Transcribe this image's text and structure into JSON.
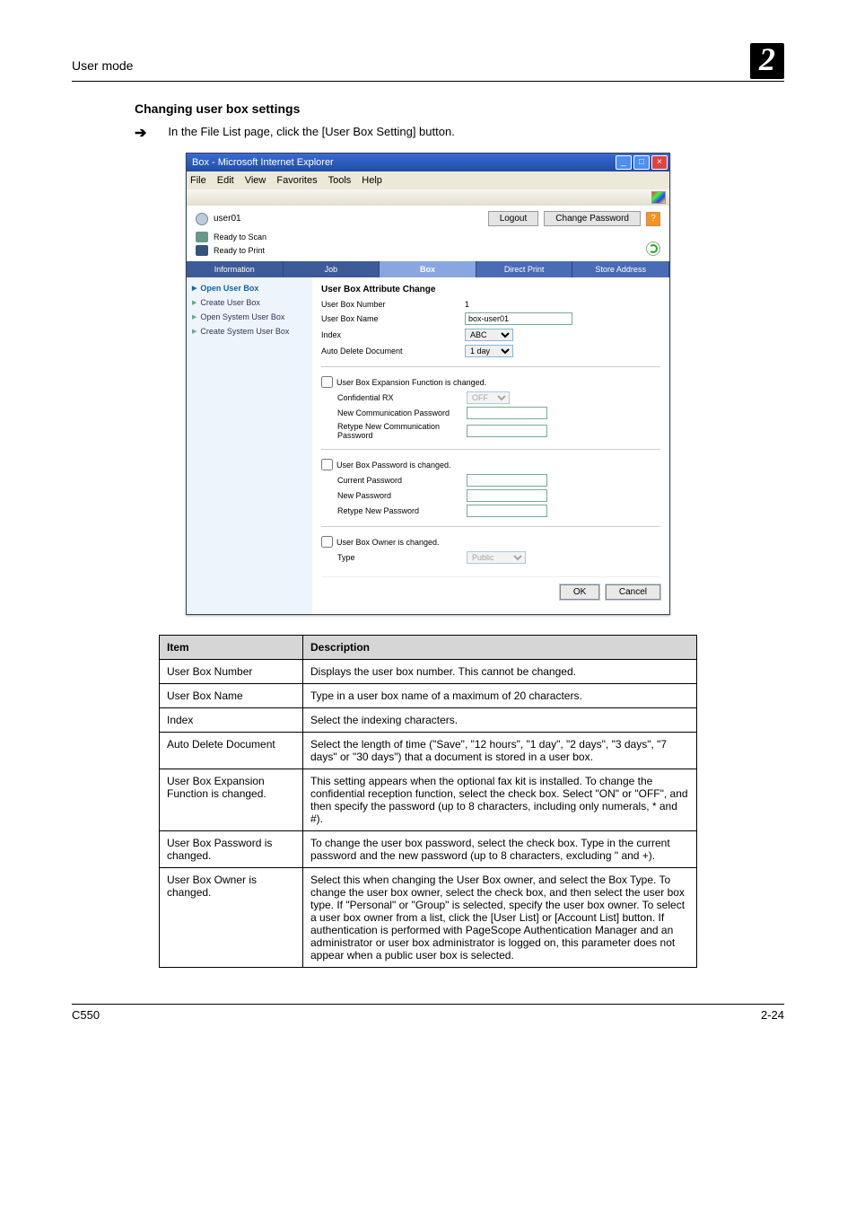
{
  "header": {
    "page_title": "User mode",
    "chapter": "2"
  },
  "section": {
    "title": "Changing user box settings",
    "instruction": "In the File List page, click the [User Box Setting] button."
  },
  "browser": {
    "title": "Box - Microsoft Internet Explorer",
    "menus": [
      "File",
      "Edit",
      "View",
      "Favorites",
      "Tools",
      "Help"
    ],
    "user": "user01",
    "logout": "Logout",
    "change_pw": "Change Password",
    "status_scan": "Ready to Scan",
    "status_print": "Ready to Print",
    "tabs": [
      "Information",
      "Job",
      "Box",
      "Direct Print",
      "Store Address"
    ],
    "active_tab": 2,
    "sidebar": [
      "Open User Box",
      "Create User Box",
      "Open System User Box",
      "Create System User Box"
    ],
    "form": {
      "title": "User Box Attribute Change",
      "rows": {
        "number_lbl": "User Box Number",
        "number_val": "1",
        "name_lbl": "User Box Name",
        "name_val": "box-user01",
        "index_lbl": "Index",
        "index_val": "ABC",
        "autodel_lbl": "Auto Delete Document",
        "autodel_val": "1 day"
      },
      "exp": {
        "chk": "User Box Expansion Function is changed.",
        "conf_lbl": "Confidential RX",
        "conf_val": "OFF",
        "npw_lbl": "New Communication Password",
        "rpw_lbl": "Retype New Communication Password"
      },
      "pwsec": {
        "chk": "User Box Password is changed.",
        "cur_lbl": "Current Password",
        "new_lbl": "New Password",
        "ret_lbl": "Retype New Password"
      },
      "ownsec": {
        "chk": "User Box Owner is changed.",
        "type_lbl": "Type",
        "type_val": "Public"
      },
      "ok": "OK",
      "cancel": "Cancel"
    }
  },
  "table": {
    "head_item": "Item",
    "head_desc": "Description",
    "rows": [
      {
        "item": "User Box Number",
        "desc": "Displays the user box number. This cannot be changed."
      },
      {
        "item": "User Box Name",
        "desc": "Type in a user box name of a maximum of 20 characters."
      },
      {
        "item": "Index",
        "desc": "Select the indexing characters."
      },
      {
        "item": "Auto Delete Document",
        "desc": "Select the length of time (\"Save\", \"12 hours\", \"1 day\", \"2 days\", \"3 days\", \"7 days\" or \"30 days\") that a document is stored in a user box."
      },
      {
        "item": "User Box Expansion Function is changed.",
        "desc": "This setting appears when the optional fax kit is installed. To change the confidential reception function, select the check box. Select \"ON\" or \"OFF\", and then specify the password (up to 8 characters, including only numerals, * and #)."
      },
      {
        "item": "User Box Password is changed.",
        "desc": "To change the user box password, select the check box. Type in the current password and the new password (up to 8 characters, excluding \" and +)."
      },
      {
        "item": "User Box Owner is changed.",
        "desc": "Select this when changing the User Box owner, and select the Box Type.\nTo change the user box owner, select the check box, and then select the user box type. If \"Personal\" or \"Group\" is selected, specify the user box owner. To select a user box owner from a list, click the [User List] or [Account List] button.\nIf authentication is performed with PageScope Authentication Manager and an administrator or user box administrator is logged on, this parameter does not appear when a public user box is selected."
      }
    ]
  },
  "footer": {
    "left": "C550",
    "right": "2-24"
  }
}
